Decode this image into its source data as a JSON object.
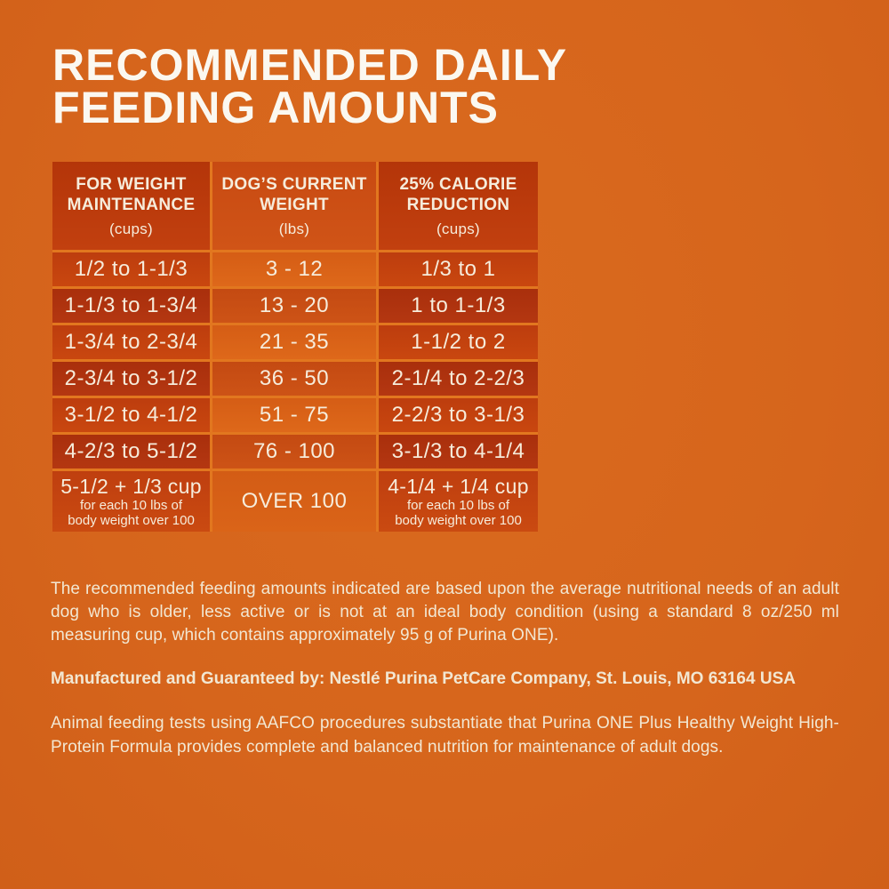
{
  "page": {
    "title": "RECOMMENDED DAILY\nFEEDING AMOUNTS"
  },
  "colors": {
    "background_orange": "#d6651c",
    "header_dark_red": "#bc3b0e",
    "header_mid_orange": "#cc4f15",
    "row_light_red": "#c34210",
    "row_light_mid_orange": "#db6418",
    "row_dark_red": "#ae330e",
    "row_dark_mid_orange": "#c94f14",
    "separator_orange": "#e2771f",
    "text_cream": "#f6ecdb"
  },
  "table": {
    "headers": [
      {
        "label": "FOR WEIGHT\nMAINTENANCE",
        "unit": "(cups)"
      },
      {
        "label": "DOG’S CURRENT\nWEIGHT",
        "unit": "(lbs)"
      },
      {
        "label": "25% CALORIE\nREDUCTION",
        "unit": "(cups)"
      }
    ],
    "rows": [
      {
        "maintenance": "1/2 to 1-1/3",
        "weight": "3 - 12",
        "reduction": "1/3 to 1"
      },
      {
        "maintenance": "1-1/3 to 1-3/4",
        "weight": "13 - 20",
        "reduction": "1 to 1-1/3"
      },
      {
        "maintenance": "1-3/4 to 2-3/4",
        "weight": "21 - 35",
        "reduction": "1-1/2 to 2"
      },
      {
        "maintenance": "2-3/4 to 3-1/2",
        "weight": "36 - 50",
        "reduction": "2-1/4 to 2-2/3"
      },
      {
        "maintenance": "3-1/2 to 4-1/2",
        "weight": "51 - 75",
        "reduction": "2-2/3 to 3-1/3"
      },
      {
        "maintenance": "4-2/3 to 5-1/2",
        "weight": "76 - 100",
        "reduction": "3-1/3 to 4-1/4"
      },
      {
        "maintenance": "5-1/2 + 1/3 cup",
        "maintenance_note": "for each 10 lbs of\nbody weight over 100",
        "weight": "OVER 100",
        "reduction": "4-1/4 + 1/4 cup",
        "reduction_note": "for each 10 lbs of\nbody weight over 100"
      }
    ]
  },
  "footer": {
    "note": "The recommended feeding amounts indicated are based upon the average nutritional needs of an adult dog who is older, less active or is not at an ideal body condition (using a standard 8 oz/250 ml measuring cup, which contains approximately 95 g of Purina ONE).",
    "manufacturer": "Manufactured and Guaranteed by: Nestlé Purina PetCare Company, St. Louis, MO 63164 USA",
    "aafco": "Animal feeding tests using AAFCO procedures substantiate that Purina ONE Plus Healthy Weight High-Protein Formula provides complete and balanced nutrition for maintenance of adult dogs."
  }
}
